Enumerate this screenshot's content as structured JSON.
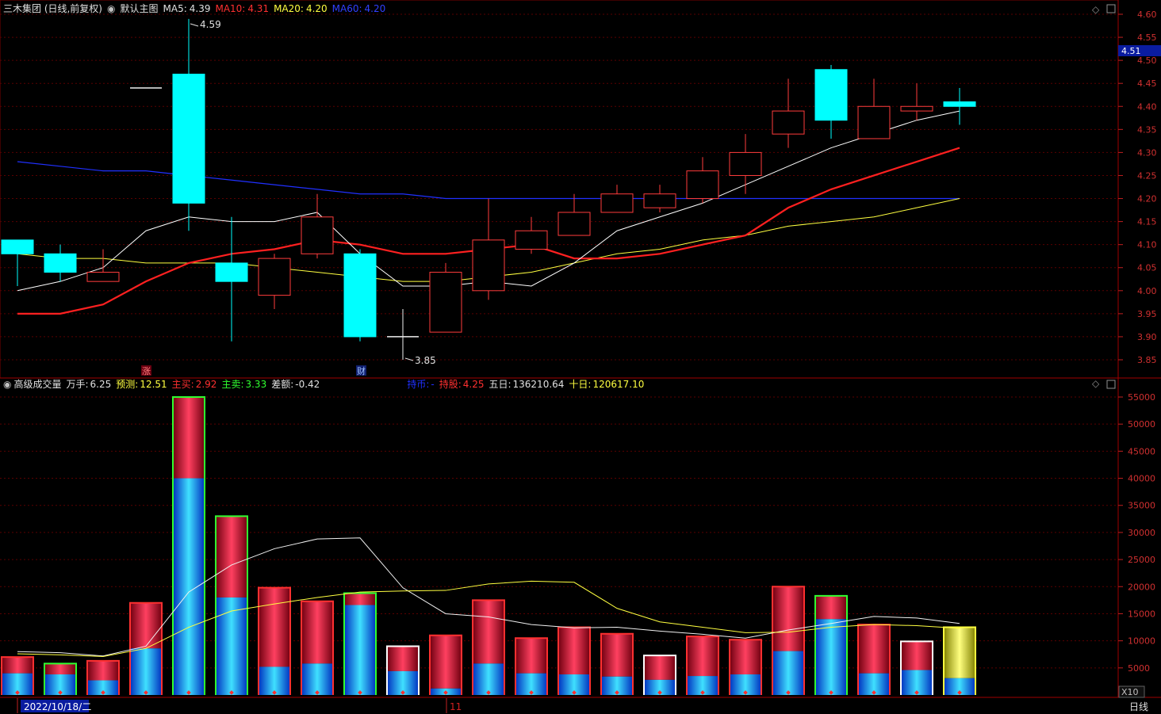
{
  "header": {
    "stock": "三木集团 (日线,前复权)",
    "template": "默认主图",
    "ma5_label": "MA5:",
    "ma5": "4.39",
    "ma10_label": "MA10:",
    "ma10": "4.31",
    "ma20_label": "MA20:",
    "ma20": "4.20",
    "ma60_label": "MA60:",
    "ma60": "4.20"
  },
  "volume_header": {
    "name": "高级成交量",
    "wanshou_label": "万手:",
    "wanshou": "6.25",
    "yuce_label": "预测:",
    "yuce": "12.51",
    "zhumai_label": "主买:",
    "zhumai": "2.92",
    "zhumai2_label": "主卖:",
    "zhumai2": "3.33",
    "cha_label": "差额:",
    "cha": "-0.42",
    "liutong_label": "持币:",
    "liutong": "-",
    "chigu_label": "持股:",
    "chigu": "4.25",
    "wuri_label": "五日:",
    "wuri": "136210.64",
    "shiri_label": "十日:",
    "shiri": "120617.10"
  },
  "annotations": {
    "high": "4.59",
    "low": "3.85",
    "zhang": "涨",
    "cai": "财",
    "current_price": "4.51",
    "x10": "X10",
    "period": "日线",
    "date": "2022/10/18/二",
    "month_mark": "11"
  },
  "colors": {
    "up": "#ff3c3c",
    "down": "#00ffff",
    "ma5": "#ffffff",
    "ma10": "#ff2020",
    "ma20": "#ffff40",
    "ma60": "#2030ff",
    "axis": "#c02020"
  },
  "price_axis": [
    "4.60",
    "4.55",
    "4.50",
    "4.45",
    "4.40",
    "4.35",
    "4.30",
    "4.25",
    "4.20",
    "4.15",
    "4.10",
    "4.05",
    "4.00",
    "3.95",
    "3.90",
    "3.85"
  ],
  "volume_axis": [
    "55000",
    "50000",
    "45000",
    "40000",
    "35000",
    "30000",
    "25000",
    "20000",
    "15000",
    "10000",
    "5000"
  ],
  "candles": [
    {
      "o": 4.11,
      "c": 4.08,
      "h": 4.11,
      "l": 4.01
    },
    {
      "o": 4.08,
      "c": 4.04,
      "h": 4.1,
      "l": 4.02
    },
    {
      "o": 4.02,
      "c": 4.04,
      "h": 4.09,
      "l": 4.02
    },
    {
      "o": 4.44,
      "c": 4.44,
      "h": 4.44,
      "l": 4.44,
      "flat": true
    },
    {
      "o": 4.47,
      "c": 4.19,
      "h": 4.59,
      "l": 4.13
    },
    {
      "o": 4.06,
      "c": 4.02,
      "h": 4.16,
      "l": 3.89
    },
    {
      "o": 3.99,
      "c": 4.07,
      "h": 4.08,
      "l": 3.96
    },
    {
      "o": 4.08,
      "c": 4.16,
      "h": 4.21,
      "l": 4.07
    },
    {
      "o": 4.08,
      "c": 3.9,
      "h": 4.09,
      "l": 3.89
    },
    {
      "o": 3.9,
      "c": 3.9,
      "h": 3.96,
      "l": 3.85,
      "flat": true
    },
    {
      "o": 3.91,
      "c": 4.04,
      "h": 4.06,
      "l": 3.91
    },
    {
      "o": 4.0,
      "c": 4.11,
      "h": 4.2,
      "l": 3.98
    },
    {
      "o": 4.09,
      "c": 4.13,
      "h": 4.16,
      "l": 4.08
    },
    {
      "o": 4.12,
      "c": 4.17,
      "h": 4.21,
      "l": 4.12
    },
    {
      "o": 4.17,
      "c": 4.21,
      "h": 4.23,
      "l": 4.17
    },
    {
      "o": 4.18,
      "c": 4.21,
      "h": 4.23,
      "l": 4.17
    },
    {
      "o": 4.2,
      "c": 4.26,
      "h": 4.29,
      "l": 4.19
    },
    {
      "o": 4.25,
      "c": 4.3,
      "h": 4.34,
      "l": 4.21
    },
    {
      "o": 4.34,
      "c": 4.39,
      "h": 4.46,
      "l": 4.31
    },
    {
      "o": 4.48,
      "c": 4.37,
      "h": 4.49,
      "l": 4.33
    },
    {
      "o": 4.33,
      "c": 4.4,
      "h": 4.46,
      "l": 4.33
    },
    {
      "o": 4.39,
      "c": 4.4,
      "h": 4.45,
      "l": 4.37
    },
    {
      "o": 4.41,
      "c": 4.4,
      "h": 4.44,
      "l": 4.36
    }
  ],
  "ma5": [
    4.0,
    4.02,
    4.05,
    4.13,
    4.16,
    4.15,
    4.15,
    4.17,
    4.08,
    4.01,
    4.01,
    4.02,
    4.01,
    4.06,
    4.13,
    4.16,
    4.19,
    4.23,
    4.27,
    4.31,
    4.34,
    4.37,
    4.39
  ],
  "ma10": [
    3.95,
    3.95,
    3.97,
    4.02,
    4.06,
    4.08,
    4.09,
    4.11,
    4.1,
    4.08,
    4.08,
    4.09,
    4.1,
    4.07,
    4.07,
    4.08,
    4.1,
    4.12,
    4.18,
    4.22,
    4.25,
    4.28,
    4.31
  ],
  "ma20": [
    4.08,
    4.07,
    4.07,
    4.06,
    4.06,
    4.06,
    4.05,
    4.04,
    4.03,
    4.02,
    4.02,
    4.03,
    4.04,
    4.06,
    4.08,
    4.09,
    4.11,
    4.12,
    4.14,
    4.15,
    4.16,
    4.18,
    4.2
  ],
  "ma60": [
    4.28,
    4.27,
    4.26,
    4.26,
    4.25,
    4.24,
    4.23,
    4.22,
    4.21,
    4.21,
    4.2,
    4.2,
    4.2,
    4.2,
    4.2,
    4.2,
    4.2,
    4.2,
    4.2,
    4.2,
    4.2,
    4.2,
    4.2
  ],
  "volumes": [
    {
      "t": 7000,
      "b": 4000,
      "e": "up"
    },
    {
      "t": 5800,
      "b": 3800,
      "e": "down"
    },
    {
      "t": 6300,
      "b": 2700,
      "e": "up"
    },
    {
      "t": 17000,
      "b": 8600,
      "e": "up"
    },
    {
      "t": 55000,
      "b": 40000,
      "e": "down"
    },
    {
      "t": 33000,
      "b": 18000,
      "e": "down"
    },
    {
      "t": 19800,
      "b": 5200,
      "e": "up"
    },
    {
      "t": 17300,
      "b": 5800,
      "e": "up"
    },
    {
      "t": 18800,
      "b": 16600,
      "e": "down"
    },
    {
      "t": 9000,
      "b": 4400,
      "e": "flat"
    },
    {
      "t": 11000,
      "b": 1200,
      "e": "up"
    },
    {
      "t": 17500,
      "b": 5800,
      "e": "up"
    },
    {
      "t": 10500,
      "b": 4000,
      "e": "up"
    },
    {
      "t": 12500,
      "b": 3800,
      "e": "up"
    },
    {
      "t": 11300,
      "b": 3400,
      "e": "up"
    },
    {
      "t": 7300,
      "b": 2800,
      "e": "flat"
    },
    {
      "t": 10800,
      "b": 3500,
      "e": "up"
    },
    {
      "t": 10200,
      "b": 3800,
      "e": "up"
    },
    {
      "t": 20000,
      "b": 8100,
      "e": "up"
    },
    {
      "t": 18300,
      "b": 14000,
      "e": "down"
    },
    {
      "t": 13000,
      "b": 4000,
      "e": "up"
    },
    {
      "t": 9900,
      "b": 4600,
      "e": "flat"
    },
    {
      "t": 12500,
      "b": 3100,
      "e": "yellow"
    }
  ],
  "vol_ma_white": [
    8000,
    7800,
    7200,
    9000,
    19000,
    24000,
    27000,
    28800,
    29000,
    19800,
    15000,
    14400,
    13000,
    12400,
    12500,
    11800,
    11200,
    10500,
    12000,
    13200,
    14500,
    14200,
    13200
  ],
  "vol_ma_yellow": [
    7600,
    7400,
    7100,
    8600,
    12500,
    15500,
    16800,
    18000,
    19000,
    19200,
    19300,
    20500,
    21000,
    20800,
    16000,
    13500,
    12500,
    11500,
    11600,
    12500,
    13000,
    12800,
    12300
  ]
}
